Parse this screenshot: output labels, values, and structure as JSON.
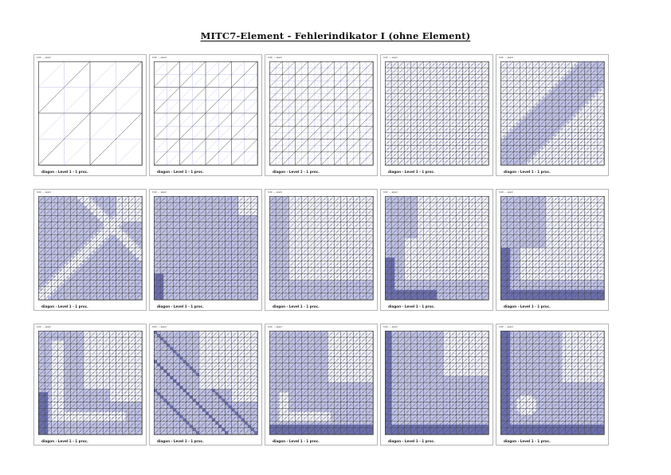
{
  "title": "MITC7-Element - Fehlerindikator I (ohne Element)",
  "colors": {
    "fill_light": "#c8cae6",
    "fill_dark": "#6c70ab",
    "mesh_coarse": "#4a4a4a",
    "mesh_fine": "#5a62c8",
    "frame": "#b5b5b5"
  },
  "panels": [
    {
      "header": "hdlr ... elem",
      "footer": "diagon - Level 1 - 1 proc.",
      "levels": [
        2,
        4
      ],
      "pattern": "none"
    },
    {
      "header": "hdlr ... elem",
      "footer": "diagon - Level 1 - 1 proc.",
      "levels": [
        4,
        8
      ],
      "pattern": "none"
    },
    {
      "header": "hdlr ... elem",
      "footer": "diagon - Level 1 - 1 proc.",
      "levels": [
        8,
        16
      ],
      "pattern": "none"
    },
    {
      "header": "hdlr ... elem",
      "footer": "diagon - Level 1 - 1 proc.",
      "levels": [
        16,
        32
      ],
      "pattern": "none"
    },
    {
      "header": "hdlr ... elem",
      "footer": "diagon - Level 1 - 1 proc.",
      "levels": [
        16,
        32
      ],
      "pattern": "band"
    },
    {
      "header": "hdlr ... elem",
      "footer": "diagon - Level 1 - 1 proc.",
      "levels": [
        16,
        32
      ],
      "pattern": "cross"
    },
    {
      "header": "hdlr ... elem",
      "footer": "diagon - Level 1 - 1 proc.",
      "levels": [
        16,
        32
      ],
      "pattern": "topright"
    },
    {
      "header": "hdlr ... elem",
      "footer": "diagon - Level 1 - 1 proc.",
      "levels": [
        16,
        32
      ],
      "pattern": "corner"
    },
    {
      "header": "hdlr ... elem",
      "footer": "diagon - Level 1 - 1 proc.",
      "levels": [
        16,
        32
      ],
      "pattern": "corner2"
    },
    {
      "header": "hdlr ... elem",
      "footer": "diagon - Level 1 - 1 proc.",
      "levels": [
        16,
        32
      ],
      "pattern": "corner3"
    },
    {
      "header": "hdlr ... elem",
      "footer": "diagon - Level 1 - 1 proc.",
      "levels": [
        16,
        32
      ],
      "pattern": "L1"
    },
    {
      "header": "hdlr ... elem",
      "footer": "diagon - Level 1 - 1 proc.",
      "levels": [
        16,
        32
      ],
      "pattern": "L2"
    },
    {
      "header": "hdlr ... elem",
      "footer": "diagon - Level 1 - 1 proc.",
      "levels": [
        16,
        32
      ],
      "pattern": "L3"
    },
    {
      "header": "hdlr ... elem",
      "footer": "diagon - Level 1 - 1 proc.",
      "levels": [
        16,
        32
      ],
      "pattern": "L4"
    },
    {
      "header": "hdlr ... elem",
      "footer": "diagon - Level 1 - 1 proc.",
      "levels": [
        16,
        32
      ],
      "pattern": "L5"
    }
  ]
}
